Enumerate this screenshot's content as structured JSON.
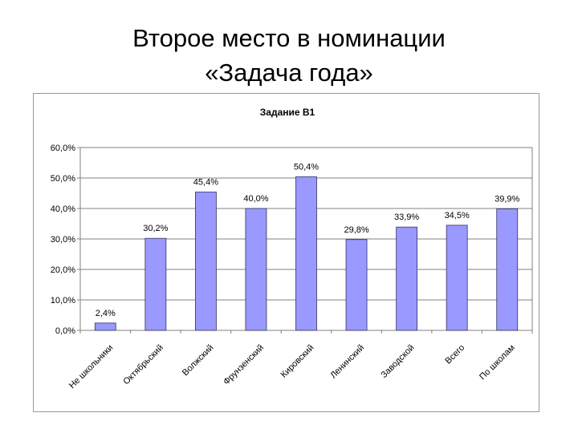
{
  "slide": {
    "title_line1": "Второе место в номинации",
    "title_line2": "«Задача года»"
  },
  "colors": {
    "bar_fill": "#9999ff",
    "bar_stroke": "#333366",
    "grid": "#808080",
    "plot_border": "#808080"
  },
  "chart_data": {
    "type": "bar",
    "title": "Задание В1",
    "xlabel": "",
    "ylabel": "",
    "categories": [
      "Не школьники",
      "Октябрьский",
      "Волжский",
      "Фрунзенский",
      "Кировский",
      "Ленинский",
      "Заводской",
      "Всего",
      "По школам"
    ],
    "values": [
      2.4,
      30.2,
      45.4,
      40.0,
      50.4,
      29.8,
      33.9,
      34.5,
      39.9
    ],
    "data_labels": [
      "2,4%",
      "30,2%",
      "45,4%",
      "40,0%",
      "50,4%",
      "29,8%",
      "33,9%",
      "34,5%",
      "39,9%"
    ],
    "y_ticks": [
      0,
      10,
      20,
      30,
      40,
      50,
      60
    ],
    "y_tick_labels": [
      "0,0%",
      "10,0%",
      "20,0%",
      "30,0%",
      "40,0%",
      "50,0%",
      "60,0%"
    ],
    "ylim": [
      0,
      60
    ],
    "grid": true,
    "legend": "none"
  }
}
